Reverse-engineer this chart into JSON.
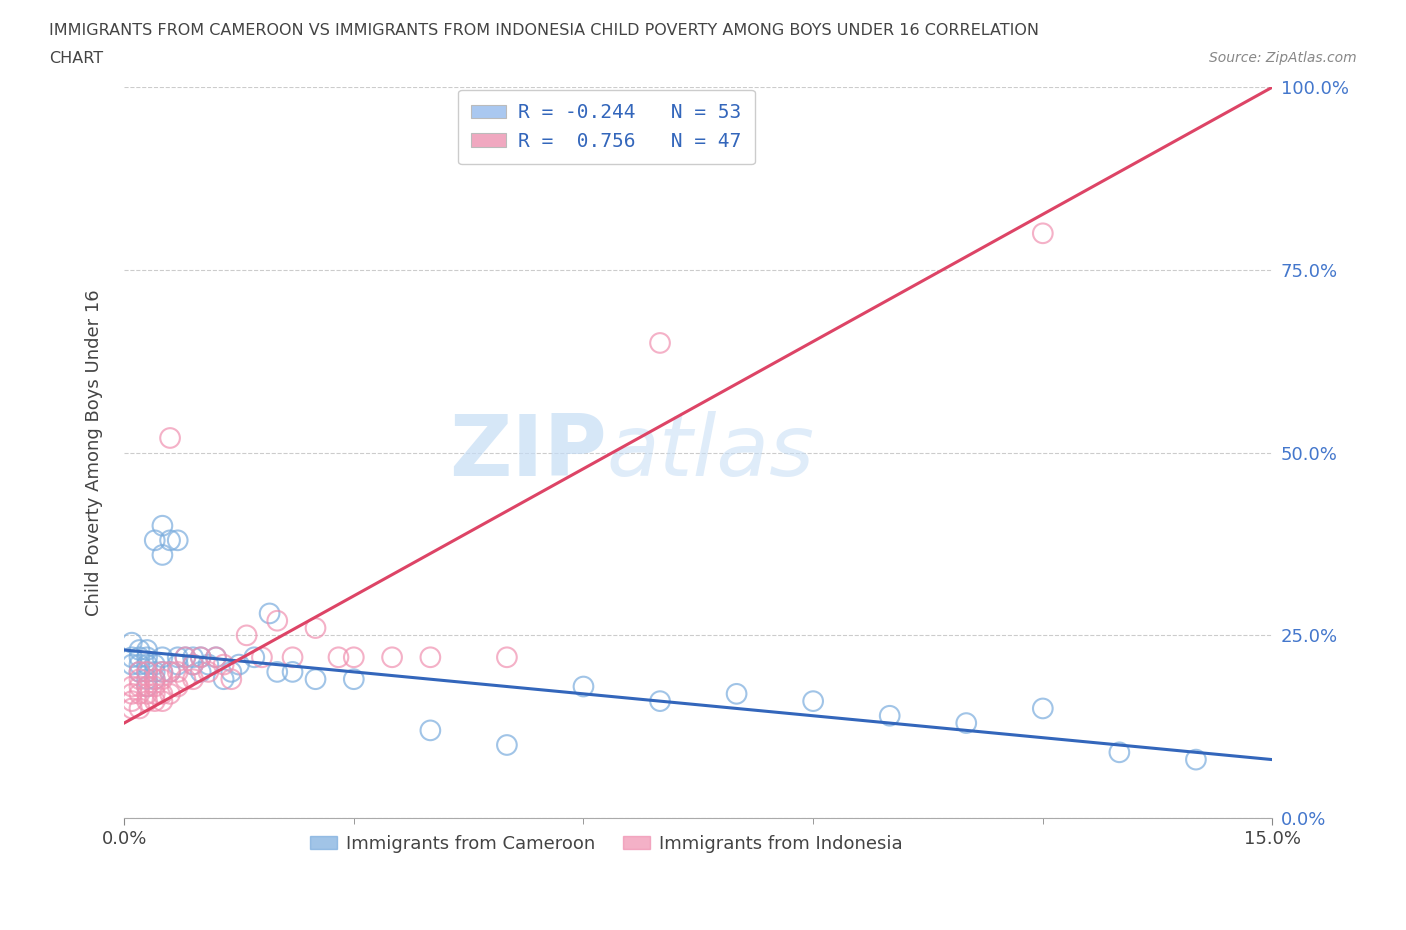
{
  "title_line1": "IMMIGRANTS FROM CAMEROON VS IMMIGRANTS FROM INDONESIA CHILD POVERTY AMONG BOYS UNDER 16 CORRELATION",
  "title_line2": "CHART",
  "source_text": "Source: ZipAtlas.com",
  "ylabel": "Child Poverty Among Boys Under 16",
  "xmin": 0.0,
  "xmax": 0.15,
  "ymin": 0.0,
  "ymax": 1.0,
  "yticks": [
    0.0,
    0.25,
    0.5,
    0.75,
    1.0
  ],
  "ytick_labels": [
    "0.0%",
    "25.0%",
    "50.0%",
    "75.0%",
    "100.0%"
  ],
  "legend_entries": [
    {
      "label": "R = -0.244   N = 53",
      "color": "#aac8f0"
    },
    {
      "label": "R =  0.756   N = 47",
      "color": "#f0a8c0"
    }
  ],
  "cameroon_color": "#7aacdd",
  "indonesia_color": "#f090b0",
  "cameroon_line_color": "#3366bb",
  "indonesia_line_color": "#dd4466",
  "watermark_zip": "ZIP",
  "watermark_atlas": "atlas",
  "background_color": "#ffffff",
  "grid_color": "#cccccc",
  "cam_R": -0.244,
  "ind_R": 0.756,
  "cameroon_x": [
    0.001,
    0.001,
    0.001,
    0.002,
    0.002,
    0.002,
    0.002,
    0.003,
    0.003,
    0.003,
    0.003,
    0.003,
    0.003,
    0.004,
    0.004,
    0.004,
    0.004,
    0.005,
    0.005,
    0.005,
    0.005,
    0.006,
    0.006,
    0.007,
    0.007,
    0.007,
    0.008,
    0.009,
    0.009,
    0.01,
    0.01,
    0.011,
    0.012,
    0.013,
    0.014,
    0.015,
    0.017,
    0.019,
    0.02,
    0.022,
    0.025,
    0.03,
    0.04,
    0.05,
    0.06,
    0.07,
    0.08,
    0.09,
    0.1,
    0.11,
    0.12,
    0.13,
    0.14
  ],
  "cameroon_y": [
    0.21,
    0.22,
    0.24,
    0.2,
    0.21,
    0.22,
    0.23,
    0.18,
    0.19,
    0.2,
    0.21,
    0.22,
    0.23,
    0.19,
    0.2,
    0.21,
    0.38,
    0.2,
    0.22,
    0.36,
    0.4,
    0.2,
    0.38,
    0.21,
    0.22,
    0.38,
    0.22,
    0.21,
    0.22,
    0.2,
    0.22,
    0.21,
    0.22,
    0.19,
    0.2,
    0.21,
    0.22,
    0.28,
    0.2,
    0.2,
    0.19,
    0.19,
    0.12,
    0.1,
    0.18,
    0.16,
    0.17,
    0.16,
    0.14,
    0.13,
    0.15,
    0.09,
    0.08
  ],
  "indonesia_x": [
    0.001,
    0.001,
    0.001,
    0.001,
    0.002,
    0.002,
    0.002,
    0.002,
    0.002,
    0.003,
    0.003,
    0.003,
    0.003,
    0.004,
    0.004,
    0.004,
    0.004,
    0.005,
    0.005,
    0.005,
    0.005,
    0.006,
    0.006,
    0.006,
    0.007,
    0.007,
    0.008,
    0.008,
    0.009,
    0.009,
    0.01,
    0.011,
    0.012,
    0.013,
    0.014,
    0.016,
    0.018,
    0.02,
    0.022,
    0.025,
    0.028,
    0.03,
    0.035,
    0.04,
    0.05,
    0.07,
    0.12
  ],
  "indonesia_y": [
    0.15,
    0.16,
    0.17,
    0.18,
    0.15,
    0.17,
    0.18,
    0.19,
    0.2,
    0.16,
    0.17,
    0.18,
    0.2,
    0.16,
    0.17,
    0.18,
    0.19,
    0.16,
    0.17,
    0.19,
    0.2,
    0.17,
    0.2,
    0.52,
    0.18,
    0.2,
    0.19,
    0.22,
    0.19,
    0.21,
    0.22,
    0.2,
    0.22,
    0.21,
    0.19,
    0.25,
    0.22,
    0.27,
    0.22,
    0.26,
    0.22,
    0.22,
    0.22,
    0.22,
    0.22,
    0.65,
    0.8
  ]
}
